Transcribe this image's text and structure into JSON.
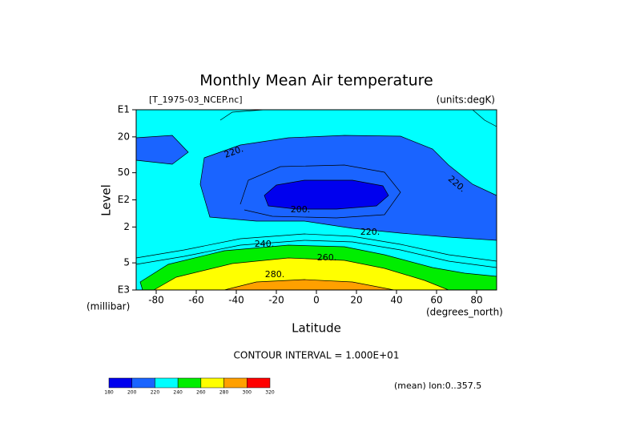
{
  "chart_data": {
    "type": "contour",
    "title": "Monthly Mean Air temperature",
    "dataset": "[T_1975-03_NCEP.nc]",
    "units": "(units:degK)",
    "x_label": "Latitude",
    "y_label": "Level",
    "y_units": "(millibar)",
    "x_units": "(degrees_north)",
    "contour_interval": "CONTOUR INTERVAL = 1.000E+01",
    "footnote": "(mean) lon:0..357.5",
    "xlim": [
      -90,
      90
    ],
    "xticks": [
      -80,
      -60,
      -40,
      -20,
      0,
      20,
      40,
      60,
      80
    ],
    "ylim": [
      10,
      1000
    ],
    "y_log": true,
    "y_inverted": true,
    "yticks": [
      {
        "value": 10,
        "label": "E1"
      },
      20,
      50,
      {
        "value": 100,
        "label": "E2"
      },
      {
        "value": 200,
        "label": "2"
      },
      {
        "value": 500,
        "label": "5"
      },
      {
        "value": 1000,
        "label": "E3"
      }
    ],
    "levels": [
      180,
      200,
      220,
      240,
      260,
      280,
      300,
      320
    ],
    "colors": [
      "#0000ee",
      "#1a64ff",
      "#00ffff",
      "#00ee00",
      "#ffff00",
      "#ffa000",
      "#ff0000"
    ],
    "contour_labels": [
      "220.",
      "200.",
      "220.",
      "220.",
      "240.",
      "260.",
      "280."
    ]
  }
}
